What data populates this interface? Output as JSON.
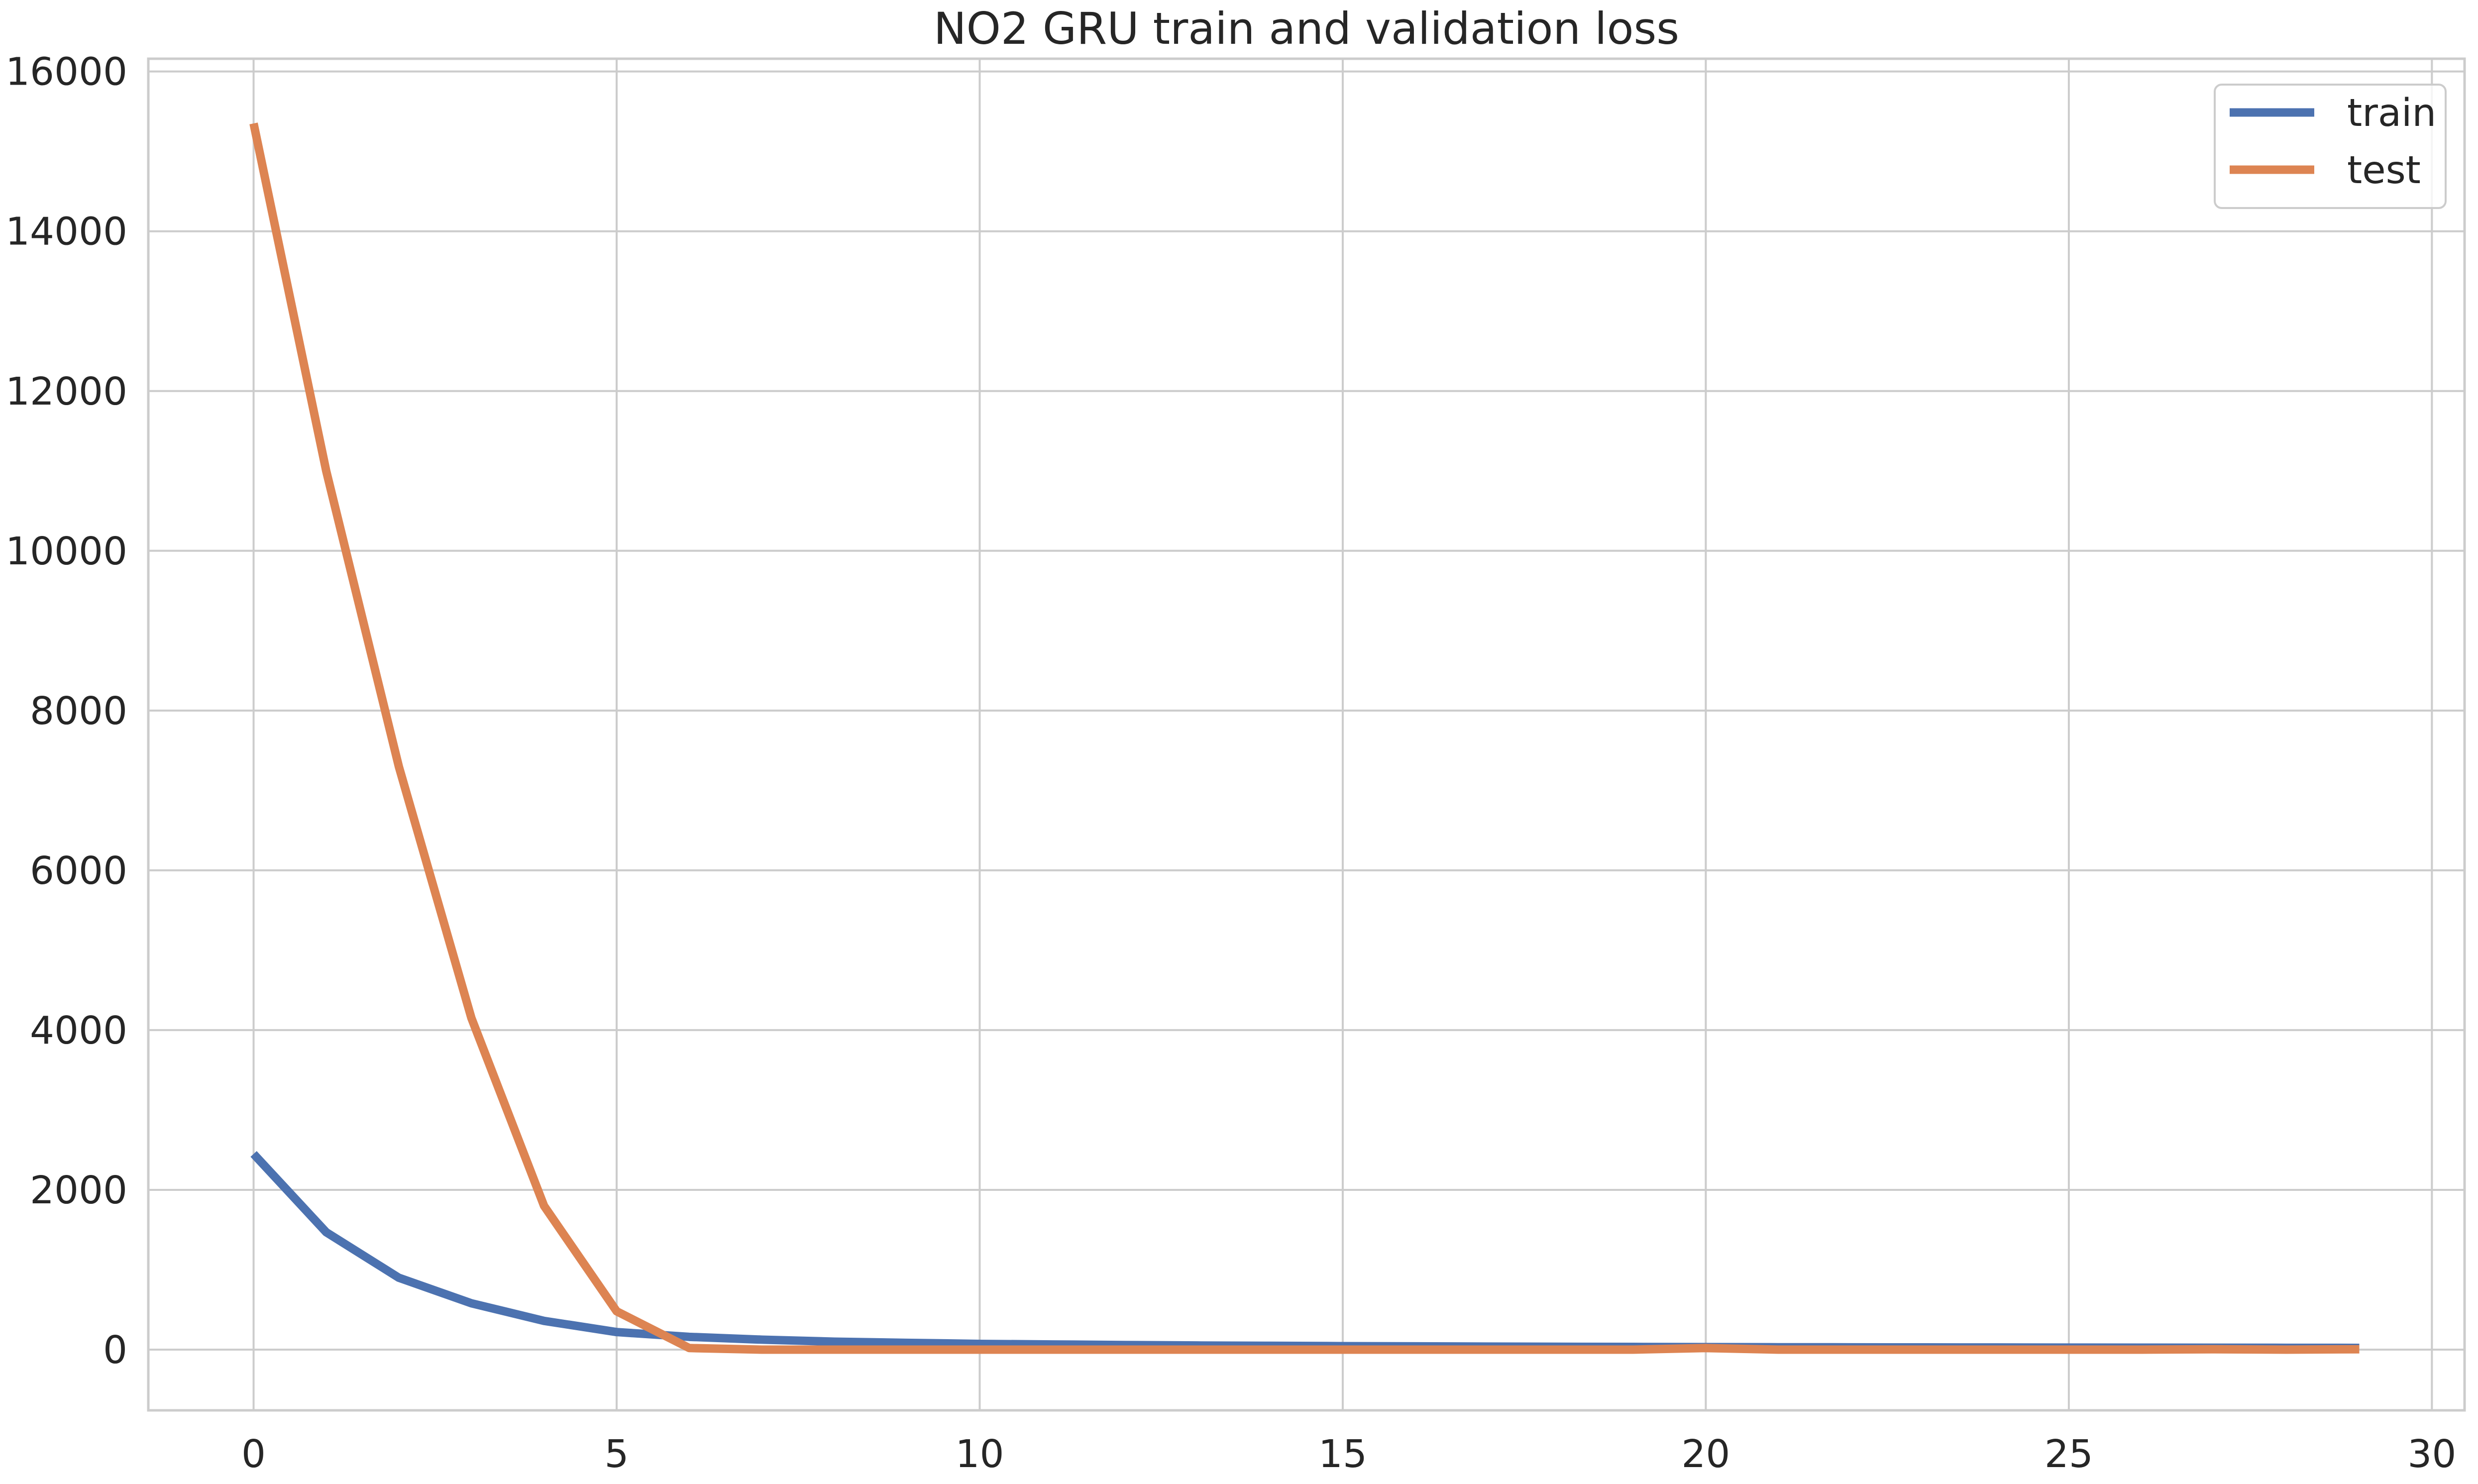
{
  "chart_data": {
    "type": "line",
    "title": "NO2 GRU train and validation loss",
    "xlabel": "",
    "ylabel": "",
    "xlim": [
      -1.45,
      30.45
    ],
    "ylim": [
      -760,
      16160
    ],
    "xticks": [
      0,
      5,
      10,
      15,
      20,
      25,
      30
    ],
    "yticks": [
      0,
      2000,
      4000,
      6000,
      8000,
      10000,
      12000,
      14000,
      16000
    ],
    "grid": true,
    "legend_position": "top-right",
    "x": [
      0,
      1,
      2,
      3,
      4,
      5,
      6,
      7,
      8,
      9,
      10,
      11,
      12,
      13,
      14,
      15,
      16,
      17,
      18,
      19,
      20,
      21,
      22,
      23,
      24,
      25,
      26,
      27,
      28,
      29
    ],
    "series": [
      {
        "name": "train",
        "color": "#4c72b0",
        "values": [
          2450,
          1470,
          900,
          580,
          360,
          220,
          160,
          125,
          100,
          85,
          72,
          65,
          58,
          52,
          48,
          44,
          41,
          38,
          36,
          34,
          32,
          30,
          29,
          28,
          27,
          26,
          25,
          24,
          23,
          22
        ]
      },
      {
        "name": "test",
        "color": "#dd8452",
        "values": [
          15350,
          11000,
          7300,
          4150,
          1800,
          480,
          20,
          0,
          0,
          0,
          0,
          0,
          0,
          0,
          0,
          0,
          0,
          0,
          0,
          0,
          20,
          0,
          0,
          0,
          0,
          0,
          0,
          5,
          0,
          5
        ]
      }
    ]
  }
}
